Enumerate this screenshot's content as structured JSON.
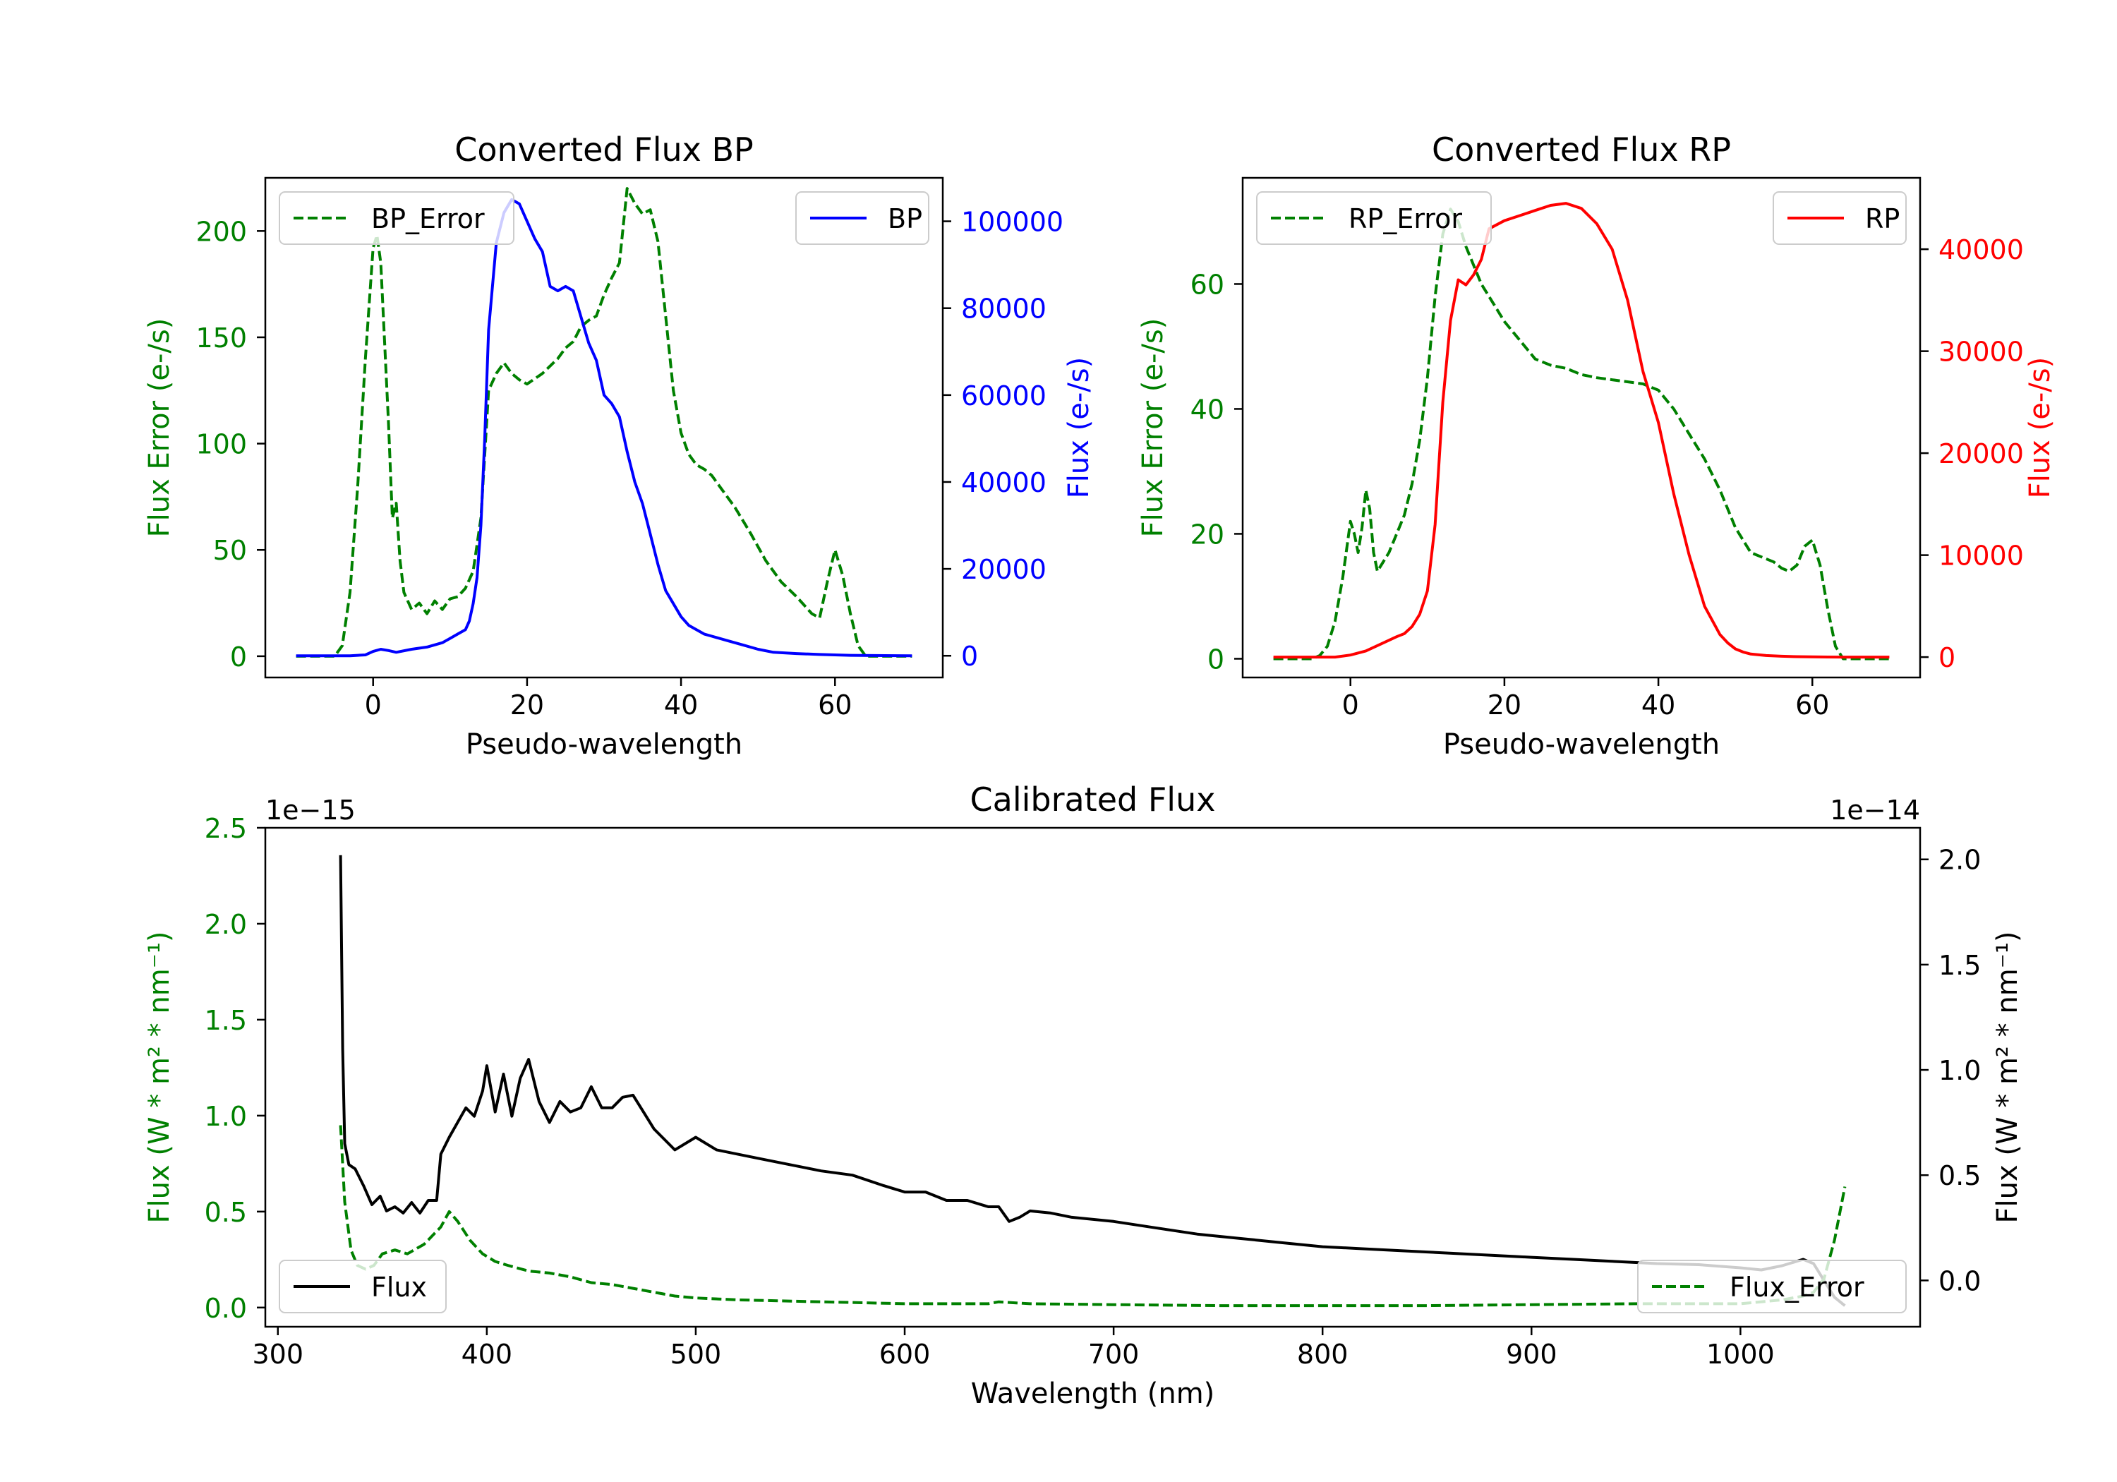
{
  "chart_data": [
    {
      "type": "line",
      "title": "Converted Flux BP",
      "xlabel": "Pseudo-wavelength",
      "xlim": [
        -14,
        74
      ],
      "xticks": [
        0,
        20,
        40,
        60
      ],
      "y_left": {
        "label": "Flux Error (e-/s)",
        "color": "#008000",
        "lim": [
          -10,
          225
        ],
        "ticks": [
          0,
          50,
          100,
          150,
          200
        ]
      },
      "y_right": {
        "label": "Flux (e-/s)",
        "color": "#0000ff",
        "lim": [
          -5000,
          110000
        ],
        "ticks": [
          0,
          20000,
          40000,
          60000,
          80000,
          100000
        ]
      },
      "legend_left": "BP_Error",
      "legend_right": "BP",
      "series": [
        {
          "name": "BP_Error",
          "axis": "left",
          "color": "#008000",
          "style": "dashed",
          "x": [
            -10,
            -5,
            -4,
            -3,
            -2,
            -1,
            0,
            0.5,
            1,
            2,
            2.5,
            3,
            3.5,
            4,
            5,
            6,
            7,
            8,
            9,
            10,
            11,
            12,
            13,
            14,
            15,
            16,
            17,
            18,
            19,
            20,
            22,
            24,
            25,
            26,
            27,
            28,
            29,
            30,
            31,
            32,
            33,
            34,
            35,
            36,
            37,
            38,
            39,
            40,
            41,
            42,
            43,
            44,
            45,
            47,
            49,
            51,
            53,
            55,
            57,
            58,
            59,
            60,
            61,
            62,
            63,
            64,
            65,
            67,
            70
          ],
          "y": [
            0,
            0,
            5,
            30,
            80,
            140,
            192,
            198,
            185,
            110,
            65,
            72,
            45,
            30,
            22,
            25,
            20,
            26,
            22,
            27,
            28,
            32,
            40,
            65,
            125,
            133,
            138,
            133,
            130,
            128,
            133,
            140,
            145,
            148,
            155,
            158,
            160,
            170,
            178,
            185,
            220,
            213,
            208,
            210,
            195,
            160,
            125,
            105,
            95,
            90,
            88,
            85,
            80,
            70,
            58,
            45,
            35,
            28,
            20,
            18,
            35,
            50,
            38,
            20,
            5,
            0,
            0,
            0,
            0
          ]
        },
        {
          "name": "BP",
          "axis": "right",
          "color": "#0000ff",
          "style": "solid",
          "x": [
            -10,
            -5,
            -3,
            -1,
            0,
            1,
            2,
            3,
            5,
            7,
            9,
            10,
            11,
            12,
            12.5,
            13,
            13.5,
            14,
            14.5,
            15,
            16,
            17,
            18,
            19,
            20,
            21,
            22,
            23,
            24,
            25,
            26,
            27,
            28,
            29,
            30,
            31,
            32,
            33,
            34,
            35,
            36,
            37,
            38,
            39,
            40,
            41,
            42,
            43,
            44,
            46,
            48,
            50,
            52,
            55,
            58,
            60,
            62,
            65,
            70
          ],
          "y": [
            0,
            0,
            0,
            200,
            1000,
            1500,
            1200,
            800,
            1500,
            2000,
            3000,
            4000,
            5000,
            6000,
            8000,
            12000,
            18000,
            30000,
            50000,
            75000,
            95000,
            102000,
            105000,
            104000,
            100000,
            96000,
            93000,
            85000,
            84000,
            85000,
            84000,
            78000,
            72000,
            68000,
            60000,
            58000,
            55000,
            47000,
            40000,
            35000,
            28000,
            21000,
            15000,
            12000,
            9000,
            7000,
            6000,
            5000,
            4500,
            3500,
            2500,
            1500,
            800,
            500,
            300,
            200,
            100,
            50,
            0
          ]
        }
      ]
    },
    {
      "type": "line",
      "title": "Converted Flux RP",
      "xlabel": "Pseudo-wavelength",
      "xlim": [
        -14,
        74
      ],
      "xticks": [
        0,
        20,
        40,
        60
      ],
      "y_left": {
        "label": "Flux Error (e-/s)",
        "color": "#008000",
        "lim": [
          -3,
          77
        ],
        "ticks": [
          0,
          20,
          40,
          60
        ]
      },
      "y_right": {
        "label": "Flux (e-/s)",
        "color": "#ff0000",
        "lim": [
          -2000,
          47000
        ],
        "ticks": [
          0,
          10000,
          20000,
          30000,
          40000
        ]
      },
      "legend_left": "RP_Error",
      "legend_right": "RP",
      "series": [
        {
          "name": "RP_Error",
          "axis": "left",
          "color": "#008000",
          "style": "dashed",
          "x": [
            -10,
            -5,
            -4,
            -3,
            -2,
            -1,
            0,
            0.5,
            1,
            1.5,
            2,
            2.5,
            3,
            3.5,
            4,
            5,
            6,
            7,
            8,
            9,
            10,
            11,
            12,
            13,
            14,
            15,
            16,
            17,
            18,
            20,
            22,
            24,
            26,
            28,
            30,
            32,
            35,
            38,
            40,
            42,
            44,
            46,
            48,
            50,
            52,
            54,
            55,
            56,
            57,
            58,
            59,
            60,
            61,
            62,
            63,
            64,
            66,
            70
          ],
          "y": [
            0,
            0,
            0.5,
            2,
            6,
            13,
            22,
            20,
            17,
            21,
            27,
            24,
            17,
            14,
            15,
            17,
            20,
            23,
            28,
            35,
            45,
            58,
            68,
            72,
            70,
            66,
            63,
            60,
            58,
            54,
            51,
            48,
            47,
            46.5,
            45.5,
            45,
            44.5,
            44,
            43,
            40,
            36,
            32,
            27,
            21,
            17,
            16,
            15.5,
            14.5,
            14,
            15,
            18,
            19,
            15,
            8,
            2,
            0,
            0,
            0
          ]
        },
        {
          "name": "RP",
          "axis": "right",
          "color": "#ff0000",
          "style": "solid",
          "x": [
            -10,
            -5,
            -2,
            0,
            2,
            4,
            6,
            7,
            8,
            9,
            10,
            11,
            12,
            13,
            14,
            15,
            16,
            17,
            18,
            20,
            22,
            24,
            26,
            28,
            30,
            32,
            34,
            36,
            38,
            40,
            42,
            44,
            46,
            48,
            49,
            50,
            51,
            52,
            54,
            56,
            58,
            60,
            62,
            64,
            66,
            70
          ],
          "y": [
            0,
            0,
            0,
            200,
            600,
            1300,
            2000,
            2300,
            3000,
            4200,
            6500,
            13000,
            25000,
            33000,
            37000,
            36500,
            37500,
            39000,
            42000,
            42800,
            43300,
            43800,
            44300,
            44500,
            44000,
            42500,
            40000,
            35000,
            28000,
            23000,
            16000,
            10000,
            5000,
            2200,
            1400,
            800,
            500,
            300,
            150,
            80,
            40,
            20,
            10,
            0,
            0,
            0
          ]
        }
      ]
    },
    {
      "type": "line",
      "title": "Calibrated Flux",
      "xlabel": "Wavelength (nm)",
      "xlim": [
        294,
        1086
      ],
      "xticks": [
        300,
        400,
        500,
        600,
        700,
        800,
        900,
        1000
      ],
      "y_left": {
        "label": "Flux (W * m² * nm⁻¹)",
        "color": "#008000",
        "lim": [
          -0.1,
          2.5
        ],
        "ticks": [
          0.0,
          0.5,
          1.0,
          1.5,
          2.0,
          2.5
        ],
        "tick_labels": [
          "0.0",
          "0.5",
          "1.0",
          "1.5",
          "2.0",
          "2.5"
        ],
        "scale_label": "1e−15"
      },
      "y_right": {
        "label": "Flux (W * m² * nm⁻¹)",
        "color": "#000000",
        "lim": [
          -0.22,
          2.15
        ],
        "ticks": [
          0.0,
          0.5,
          1.0,
          1.5,
          2.0
        ],
        "tick_labels": [
          "0.0",
          "0.5",
          "1.0",
          "1.5",
          "2.0"
        ],
        "scale_label": "1e−14"
      },
      "legend_left": "Flux",
      "legend_right": "Flux_Error",
      "series": [
        {
          "name": "Flux",
          "axis": "right",
          "color": "#000000",
          "style": "solid",
          "x": [
            330,
            331,
            332,
            334,
            337,
            341,
            345,
            349,
            352,
            356,
            360,
            364,
            368,
            372,
            376,
            378,
            382,
            386,
            390,
            394,
            398,
            400,
            404,
            408,
            412,
            416,
            420,
            425,
            430,
            435,
            440,
            445,
            450,
            455,
            460,
            465,
            470,
            475,
            480,
            490,
            500,
            510,
            520,
            530,
            545,
            560,
            575,
            590,
            600,
            610,
            620,
            630,
            640,
            645,
            650,
            655,
            660,
            670,
            680,
            700,
            720,
            740,
            760,
            780,
            800,
            820,
            840,
            860,
            880,
            900,
            920,
            940,
            960,
            980,
            1000,
            1010,
            1020,
            1030,
            1035,
            1040,
            1045,
            1050
          ],
          "y": [
            2.02,
            1.1,
            0.65,
            0.55,
            0.53,
            0.45,
            0.36,
            0.4,
            0.33,
            0.35,
            0.32,
            0.37,
            0.32,
            0.38,
            0.38,
            0.6,
            0.68,
            0.75,
            0.82,
            0.78,
            0.9,
            1.02,
            0.8,
            0.98,
            0.78,
            0.96,
            1.05,
            0.85,
            0.75,
            0.85,
            0.8,
            0.82,
            0.92,
            0.82,
            0.82,
            0.87,
            0.88,
            0.8,
            0.72,
            0.62,
            0.68,
            0.62,
            0.6,
            0.58,
            0.55,
            0.52,
            0.5,
            0.45,
            0.42,
            0.42,
            0.38,
            0.38,
            0.35,
            0.35,
            0.28,
            0.3,
            0.33,
            0.32,
            0.3,
            0.28,
            0.25,
            0.22,
            0.2,
            0.18,
            0.16,
            0.15,
            0.14,
            0.13,
            0.12,
            0.11,
            0.1,
            0.09,
            0.08,
            0.075,
            0.06,
            0.05,
            0.07,
            0.1,
            0.08,
            0.0,
            -0.08,
            -0.12
          ]
        },
        {
          "name": "Flux_Error",
          "axis": "left",
          "color": "#008000",
          "style": "dashed",
          "x": [
            330,
            332,
            335,
            338,
            342,
            346,
            350,
            356,
            362,
            370,
            378,
            382,
            386,
            392,
            398,
            404,
            410,
            420,
            430,
            440,
            450,
            460,
            470,
            480,
            490,
            500,
            520,
            540,
            560,
            580,
            600,
            620,
            640,
            645,
            660,
            700,
            750,
            800,
            850,
            900,
            950,
            1000,
            1020,
            1030,
            1035,
            1040,
            1045,
            1050
          ],
          "y": [
            0.95,
            0.55,
            0.3,
            0.22,
            0.2,
            0.22,
            0.28,
            0.3,
            0.28,
            0.33,
            0.42,
            0.5,
            0.45,
            0.35,
            0.28,
            0.24,
            0.22,
            0.19,
            0.18,
            0.16,
            0.13,
            0.12,
            0.1,
            0.08,
            0.06,
            0.05,
            0.04,
            0.035,
            0.03,
            0.025,
            0.02,
            0.02,
            0.02,
            0.03,
            0.02,
            0.015,
            0.01,
            0.01,
            0.01,
            0.015,
            0.02,
            0.02,
            0.04,
            0.06,
            0.08,
            0.15,
            0.35,
            0.63
          ]
        }
      ]
    }
  ]
}
